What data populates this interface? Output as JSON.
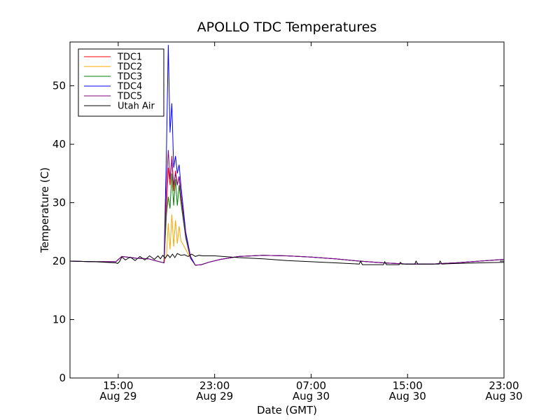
{
  "chart_data": {
    "type": "line",
    "title": "APOLLO TDC Temperatures",
    "xlabel": "Date (GMT)",
    "ylabel": "Temperature (C)",
    "xlim": [
      11.0,
      47.0
    ],
    "ylim": [
      0,
      57.5
    ],
    "x_unit": "hours since Aug 29 00:00 GMT",
    "xticks": [
      {
        "value": 15,
        "line1": "15:00",
        "line2": "Aug 29"
      },
      {
        "value": 23,
        "line1": "23:00",
        "line2": "Aug 29"
      },
      {
        "value": 31,
        "line1": "07:00",
        "line2": "Aug 30"
      },
      {
        "value": 39,
        "line1": "15:00",
        "line2": "Aug 30"
      },
      {
        "value": 47,
        "line1": "23:00",
        "line2": "Aug 30"
      }
    ],
    "yticks": [
      0,
      10,
      20,
      30,
      40,
      50
    ],
    "legend_position": "top-left",
    "series": [
      {
        "name": "TDC1",
        "color": "#ff0000",
        "x": [
          11.0,
          13.0,
          14.8,
          15.3,
          16.5,
          17.5,
          18.6,
          18.8,
          19.0,
          19.15,
          19.3,
          19.45,
          19.6,
          19.75,
          19.9,
          20.05,
          20.2,
          20.6,
          21.0,
          21.4,
          21.9,
          22.5,
          23.5,
          25.0,
          27.0,
          29.0,
          31.0,
          33.0,
          35.0,
          37.0,
          39.0,
          41.0,
          43.0,
          45.0,
          47.0
        ],
        "y": [
          20.0,
          19.9,
          19.9,
          20.8,
          20.5,
          20.4,
          19.8,
          19.7,
          29.0,
          36.0,
          33.0,
          38.0,
          32.0,
          35.5,
          33.0,
          34.5,
          31.0,
          24.0,
          20.5,
          19.3,
          19.4,
          19.8,
          20.3,
          20.8,
          21.0,
          20.9,
          20.7,
          20.4,
          20.0,
          19.7,
          19.5,
          19.5,
          19.7,
          20.0,
          20.3
        ]
      },
      {
        "name": "TDC2",
        "color": "#ffa500",
        "x": [
          11.0,
          13.0,
          14.8,
          15.3,
          16.5,
          17.5,
          18.6,
          18.8,
          19.0,
          19.15,
          19.3,
          19.45,
          19.6,
          19.75,
          19.9,
          20.05,
          20.2,
          20.6,
          21.0,
          21.4,
          21.9,
          22.5,
          23.5,
          25.0,
          27.0,
          29.0,
          31.0,
          33.0,
          35.0,
          37.0,
          39.0,
          41.0,
          43.0,
          45.0,
          47.0
        ],
        "y": [
          20.0,
          19.9,
          19.9,
          20.8,
          20.5,
          20.4,
          19.8,
          19.7,
          21.0,
          26.5,
          22.0,
          28.0,
          22.5,
          27.0,
          23.0,
          26.0,
          23.5,
          22.0,
          20.5,
          19.3,
          19.4,
          19.8,
          20.3,
          20.8,
          21.0,
          20.9,
          20.7,
          20.4,
          20.0,
          19.7,
          19.5,
          19.5,
          19.7,
          20.0,
          20.3
        ]
      },
      {
        "name": "TDC3",
        "color": "#008000",
        "x": [
          11.0,
          13.0,
          14.8,
          15.3,
          16.5,
          17.5,
          18.6,
          18.8,
          19.0,
          19.15,
          19.3,
          19.45,
          19.6,
          19.75,
          19.9,
          20.05,
          20.2,
          20.6,
          21.0,
          21.4,
          21.9,
          22.5,
          23.5,
          25.0,
          27.0,
          29.0,
          31.0,
          33.0,
          35.0,
          37.0,
          39.0,
          41.0,
          43.0,
          45.0,
          47.0
        ],
        "y": [
          20.0,
          19.9,
          19.9,
          20.8,
          20.5,
          20.4,
          19.8,
          19.7,
          28.0,
          31.0,
          29.0,
          35.0,
          29.5,
          34.0,
          29.5,
          33.0,
          30.0,
          24.0,
          20.5,
          19.3,
          19.4,
          19.8,
          20.3,
          20.8,
          21.0,
          20.9,
          20.7,
          20.4,
          20.0,
          19.7,
          19.5,
          19.5,
          19.7,
          20.0,
          20.3
        ]
      },
      {
        "name": "TDC4",
        "color": "#0000ff",
        "x": [
          11.0,
          13.0,
          14.8,
          15.3,
          16.5,
          17.5,
          18.6,
          18.8,
          19.0,
          19.15,
          19.3,
          19.45,
          19.6,
          19.75,
          19.9,
          20.05,
          20.2,
          20.6,
          21.0,
          21.4,
          21.9,
          22.5,
          23.5,
          25.0,
          27.0,
          29.0,
          31.0,
          33.0,
          35.0,
          37.0,
          39.0,
          41.0,
          43.0,
          45.0,
          47.0
        ],
        "y": [
          20.0,
          19.9,
          19.9,
          20.8,
          20.5,
          20.4,
          19.8,
          19.7,
          39.0,
          57.0,
          42.0,
          47.0,
          36.0,
          38.0,
          35.0,
          36.5,
          33.0,
          25.0,
          20.8,
          19.3,
          19.4,
          19.8,
          20.3,
          20.8,
          21.0,
          20.9,
          20.7,
          20.4,
          20.0,
          19.7,
          19.5,
          19.5,
          19.7,
          20.0,
          20.3
        ]
      },
      {
        "name": "TDC5",
        "color": "#800080",
        "x": [
          11.0,
          13.0,
          14.8,
          15.3,
          16.5,
          17.5,
          18.6,
          18.8,
          19.0,
          19.15,
          19.3,
          19.45,
          19.6,
          19.75,
          19.9,
          20.05,
          20.2,
          20.6,
          21.0,
          21.4,
          21.9,
          22.5,
          23.5,
          25.0,
          27.0,
          29.0,
          31.0,
          33.0,
          35.0,
          37.0,
          39.0,
          41.0,
          43.0,
          45.0,
          47.0
        ],
        "y": [
          20.0,
          19.9,
          19.9,
          20.8,
          20.5,
          20.4,
          19.8,
          19.7,
          33.0,
          39.0,
          34.0,
          37.5,
          33.0,
          35.0,
          33.0,
          34.5,
          31.5,
          24.5,
          20.5,
          19.3,
          19.4,
          19.8,
          20.3,
          20.8,
          21.0,
          20.9,
          20.7,
          20.4,
          20.0,
          19.7,
          19.5,
          19.5,
          19.7,
          20.0,
          20.3
        ]
      },
      {
        "name": "Utah Air",
        "color": "#000000",
        "x": [
          11.0,
          13.0,
          14.8,
          14.95,
          15.1,
          15.3,
          15.6,
          16.0,
          16.4,
          16.8,
          17.2,
          17.6,
          18.0,
          18.3,
          18.5,
          18.7,
          18.9,
          19.1,
          19.3,
          19.5,
          19.7,
          19.9,
          20.2,
          20.5,
          20.8,
          21.1,
          21.4,
          21.7,
          22.0,
          23.0,
          25.0,
          27.0,
          29.0,
          31.0,
          33.0,
          35.0,
          35.1,
          35.25,
          37.0,
          37.1,
          37.25,
          38.3,
          38.4,
          38.55,
          39.6,
          39.7,
          39.85,
          41.6,
          41.7,
          41.85,
          43.0,
          45.0,
          47.0
        ],
        "y": [
          20.0,
          19.9,
          19.7,
          19.6,
          19.9,
          20.7,
          20.2,
          20.7,
          20.1,
          20.8,
          20.2,
          20.9,
          20.3,
          20.9,
          20.4,
          21.0,
          20.5,
          21.1,
          20.6,
          21.2,
          20.6,
          21.3,
          21.0,
          21.1,
          20.8,
          21.2,
          20.8,
          21.0,
          20.9,
          20.9,
          20.6,
          20.4,
          20.1,
          19.9,
          19.7,
          19.5,
          20.0,
          19.4,
          19.4,
          19.9,
          19.4,
          19.4,
          19.8,
          19.5,
          19.5,
          20.0,
          19.5,
          19.5,
          20.0,
          19.5,
          19.6,
          19.7,
          19.8
        ]
      }
    ]
  }
}
